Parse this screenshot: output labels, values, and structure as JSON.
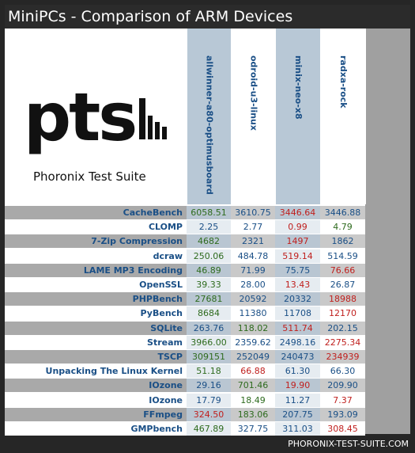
{
  "window_title": "MiniPCs - Comparison of ARM Devices",
  "logo": {
    "brand": "pts",
    "subtitle": "Phoronix Test Suite"
  },
  "footer": "PHORONIX-TEST-SUITE.COM",
  "colors": {
    "win": "#2e6b1e",
    "lose": "#c0201e",
    "neutral": "#1a4f86",
    "label": "#1a4f86"
  },
  "chart_data": {
    "type": "table",
    "columns": [
      "allwinner-a80-optimusboard",
      "odroid-u3-linux",
      "minix-neo-x8",
      "radxa-rock"
    ],
    "rows": [
      {
        "test": "CacheBench",
        "values": [
          "6058.51",
          "3610.75",
          "3446.64",
          "3446.88"
        ],
        "highlight": [
          "win",
          "neutral",
          "lose",
          "neutral"
        ]
      },
      {
        "test": "CLOMP",
        "values": [
          "2.25",
          "2.77",
          "0.99",
          "4.79"
        ],
        "highlight": [
          "neutral",
          "neutral",
          "lose",
          "win"
        ]
      },
      {
        "test": "7-Zip Compression",
        "values": [
          "4682",
          "2321",
          "1497",
          "1862"
        ],
        "highlight": [
          "win",
          "neutral",
          "lose",
          "neutral"
        ]
      },
      {
        "test": "dcraw",
        "values": [
          "250.06",
          "484.78",
          "519.14",
          "514.59"
        ],
        "highlight": [
          "win",
          "neutral",
          "lose",
          "neutral"
        ]
      },
      {
        "test": "LAME MP3 Encoding",
        "values": [
          "46.89",
          "71.99",
          "75.75",
          "76.66"
        ],
        "highlight": [
          "win",
          "neutral",
          "neutral",
          "lose"
        ]
      },
      {
        "test": "OpenSSL",
        "values": [
          "39.33",
          "28.00",
          "13.43",
          "26.87"
        ],
        "highlight": [
          "win",
          "neutral",
          "lose",
          "neutral"
        ]
      },
      {
        "test": "PHPBench",
        "values": [
          "27681",
          "20592",
          "20332",
          "18988"
        ],
        "highlight": [
          "win",
          "neutral",
          "neutral",
          "lose"
        ]
      },
      {
        "test": "PyBench",
        "values": [
          "8684",
          "11380",
          "11708",
          "12170"
        ],
        "highlight": [
          "win",
          "neutral",
          "neutral",
          "lose"
        ]
      },
      {
        "test": "SQLite",
        "values": [
          "263.76",
          "118.02",
          "511.74",
          "202.15"
        ],
        "highlight": [
          "neutral",
          "win",
          "lose",
          "neutral"
        ]
      },
      {
        "test": "Stream",
        "values": [
          "3966.00",
          "2359.62",
          "2498.16",
          "2275.34"
        ],
        "highlight": [
          "win",
          "neutral",
          "neutral",
          "lose"
        ]
      },
      {
        "test": "TSCP",
        "values": [
          "309151",
          "252049",
          "240473",
          "234939"
        ],
        "highlight": [
          "win",
          "neutral",
          "neutral",
          "lose"
        ]
      },
      {
        "test": "Unpacking The Linux Kernel",
        "values": [
          "51.18",
          "66.88",
          "61.30",
          "66.30"
        ],
        "highlight": [
          "win",
          "lose",
          "neutral",
          "neutral"
        ]
      },
      {
        "test": "IOzone",
        "values": [
          "29.16",
          "701.46",
          "19.90",
          "209.90"
        ],
        "highlight": [
          "neutral",
          "win",
          "lose",
          "neutral"
        ]
      },
      {
        "test": "IOzone",
        "values": [
          "17.79",
          "18.49",
          "11.27",
          "7.37"
        ],
        "highlight": [
          "neutral",
          "win",
          "neutral",
          "lose"
        ]
      },
      {
        "test": "FFmpeg",
        "values": [
          "324.50",
          "183.06",
          "207.75",
          "193.09"
        ],
        "highlight": [
          "lose",
          "win",
          "neutral",
          "neutral"
        ]
      },
      {
        "test": "GMPbench",
        "values": [
          "467.89",
          "327.75",
          "311.03",
          "308.45"
        ],
        "highlight": [
          "win",
          "neutral",
          "neutral",
          "lose"
        ]
      }
    ]
  }
}
